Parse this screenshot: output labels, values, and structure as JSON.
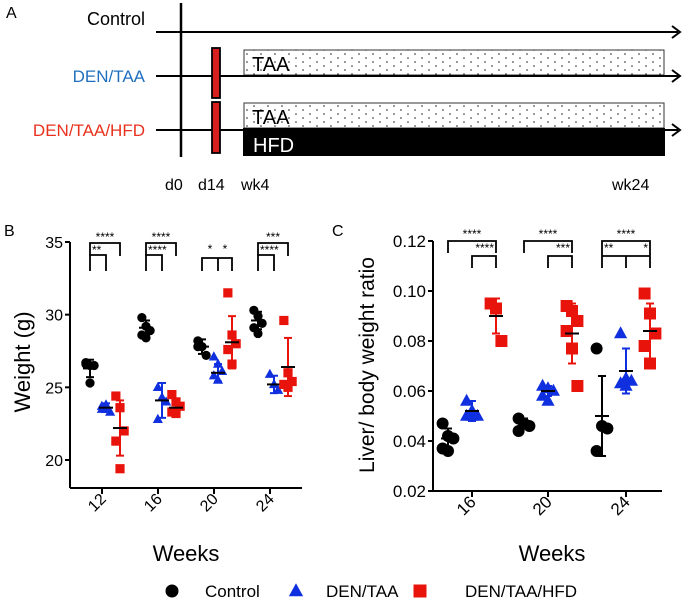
{
  "panelA": {
    "label": "A",
    "groups": [
      {
        "name": "Control",
        "color": "#000000"
      },
      {
        "name": "DEN/TAA",
        "color": "#1f6fbf"
      },
      {
        "name": "DEN/TAA/HFD",
        "color": "#e8321e"
      }
    ],
    "timepoints": [
      "d0",
      "d14",
      "wk4",
      "wk24"
    ],
    "bars": {
      "taa": "TAA",
      "hfd": "HFD"
    },
    "injection_color": "#d71f1f"
  },
  "chart_data": [
    {
      "panel": "B",
      "type": "scatter",
      "title": "",
      "xlabel": "Weeks",
      "ylabel": "Weight (g)",
      "ylim": [
        18,
        35
      ],
      "yticks": [
        20,
        25,
        30,
        35
      ],
      "categories": [
        "12",
        "16",
        "20",
        "24"
      ],
      "grid": false,
      "series": [
        {
          "name": "Control",
          "color": "#000000",
          "marker": "circle",
          "points": {
            "12": [
              26.6,
              26.5,
              26.5,
              26.7,
              25.3
            ],
            "16": [
              29.8,
              29.2,
              28.9,
              28.6,
              28.4
            ],
            "20": [
              28.2,
              27.8,
              27.2,
              27.8
            ],
            "24": [
              30.3,
              29.9,
              29.4,
              29.1,
              28.7
            ]
          },
          "mean": {
            "12": 26.3,
            "16": 29.1,
            "20": 27.8,
            "24": 29.6
          },
          "err": {
            "12": 0.6,
            "16": 0.5,
            "20": 0.5,
            "24": 0.6
          }
        },
        {
          "name": "DEN/TAA",
          "color": "#1030e0",
          "marker": "triangle",
          "points": {
            "12": [
              23.7,
              23.5,
              23.3,
              23.5,
              23.8
            ],
            "16": [
              25.0,
              24.3,
              24.0,
              22.8
            ],
            "20": [
              27.1,
              26.6,
              26.1,
              25.8,
              25.5
            ],
            "24": [
              25.9,
              25.2,
              24.8
            ]
          },
          "mean": {
            "12": 23.6,
            "16": 24.1,
            "20": 26.0,
            "24": 25.2
          },
          "err": {
            "12": 0.3,
            "16": 1.2,
            "20": 0.6,
            "24": 0.6
          }
        },
        {
          "name": "DEN/TAA/HFD",
          "color": "#e8140c",
          "marker": "square",
          "points": {
            "12": [
              24.4,
              23.6,
              22.0,
              21.3,
              19.4
            ],
            "16": [
              24.5,
              24.0,
              23.7,
              23.3,
              23.2
            ],
            "20": [
              31.5,
              28.6,
              28.0,
              27.6,
              26.6
            ],
            "24": [
              29.6,
              26.0,
              25.4,
              25.2,
              25.0
            ]
          },
          "mean": {
            "12": 22.2,
            "16": 23.6,
            "20": 28.1,
            "24": 26.4
          },
          "err": {
            "12": 1.9,
            "16": 0.5,
            "20": 1.8,
            "24": 2.0
          }
        }
      ],
      "significance": [
        {
          "week": "12",
          "top": "****",
          "bottom": "**",
          "layout": "nested"
        },
        {
          "week": "16",
          "top": "****",
          "bottom": "****",
          "layout": "nested"
        },
        {
          "week": "20",
          "left": "*",
          "right": "*",
          "layout": "split"
        },
        {
          "week": "24",
          "top": "***",
          "bottom": "****",
          "layout": "nested"
        }
      ]
    },
    {
      "panel": "C",
      "type": "scatter",
      "title": "",
      "xlabel": "Weeks",
      "ylabel": "Liver/ body weight ratio",
      "ylim": [
        0.02,
        0.12
      ],
      "yticks": [
        0.02,
        0.04,
        0.06,
        0.08,
        0.1,
        0.12
      ],
      "categories": [
        "16",
        "20",
        "24"
      ],
      "grid": false,
      "series": [
        {
          "name": "Control",
          "color": "#000000",
          "marker": "circle",
          "points": {
            "16": [
              0.047,
              0.042,
              0.041,
              0.037,
              0.036
            ],
            "20": [
              0.049,
              0.047,
              0.046,
              0.044
            ],
            "24": [
              0.077,
              0.046,
              0.045,
              0.036
            ]
          },
          "mean": {
            "16": 0.041,
            "20": 0.047,
            "24": 0.05
          },
          "err": {
            "16": 0.004,
            "20": 0.002,
            "24": 0.016
          }
        },
        {
          "name": "DEN/TAA",
          "color": "#1030e0",
          "marker": "triangle",
          "points": {
            "16": [
              0.056,
              0.052,
              0.05,
              0.05,
              0.05
            ],
            "20": [
              0.062,
              0.061,
              0.06,
              0.058,
              0.056
            ],
            "24": [
              0.083,
              0.065,
              0.064,
              0.063,
              0.062
            ]
          },
          "mean": {
            "16": 0.052,
            "20": 0.06,
            "24": 0.068
          },
          "err": {
            "16": 0.004,
            "20": 0.002,
            "24": 0.009
          }
        },
        {
          "name": "DEN/TAA/HFD",
          "color": "#e8140c",
          "marker": "square",
          "points": {
            "16": [
              0.095,
              0.093,
              0.08
            ],
            "20": [
              0.094,
              0.092,
              0.088,
              0.084,
              0.077,
              0.062
            ],
            "24": [
              0.099,
              0.091,
              0.083,
              0.078,
              0.071
            ]
          },
          "mean": {
            "16": 0.09,
            "20": 0.083,
            "24": 0.084
          },
          "err": {
            "16": 0.007,
            "20": 0.012,
            "24": 0.011
          }
        }
      ],
      "significance": [
        {
          "week": "16",
          "top": "****",
          "bottom": "****",
          "layout": "offset"
        },
        {
          "week": "20",
          "top": "****",
          "bottom": "***",
          "layout": "offset"
        },
        {
          "week": "24",
          "top": "****",
          "left": "**",
          "right": "*",
          "layout": "split-nested"
        }
      ]
    }
  ],
  "legend": [
    {
      "label": "Control",
      "marker": "circle",
      "color": "#000000"
    },
    {
      "label": "DEN/TAA",
      "marker": "triangle",
      "color": "#1030e0"
    },
    {
      "label": "DEN/TAA/HFD",
      "marker": "square",
      "color": "#e8140c"
    }
  ],
  "panelB_label": "B",
  "panelC_label": "C"
}
